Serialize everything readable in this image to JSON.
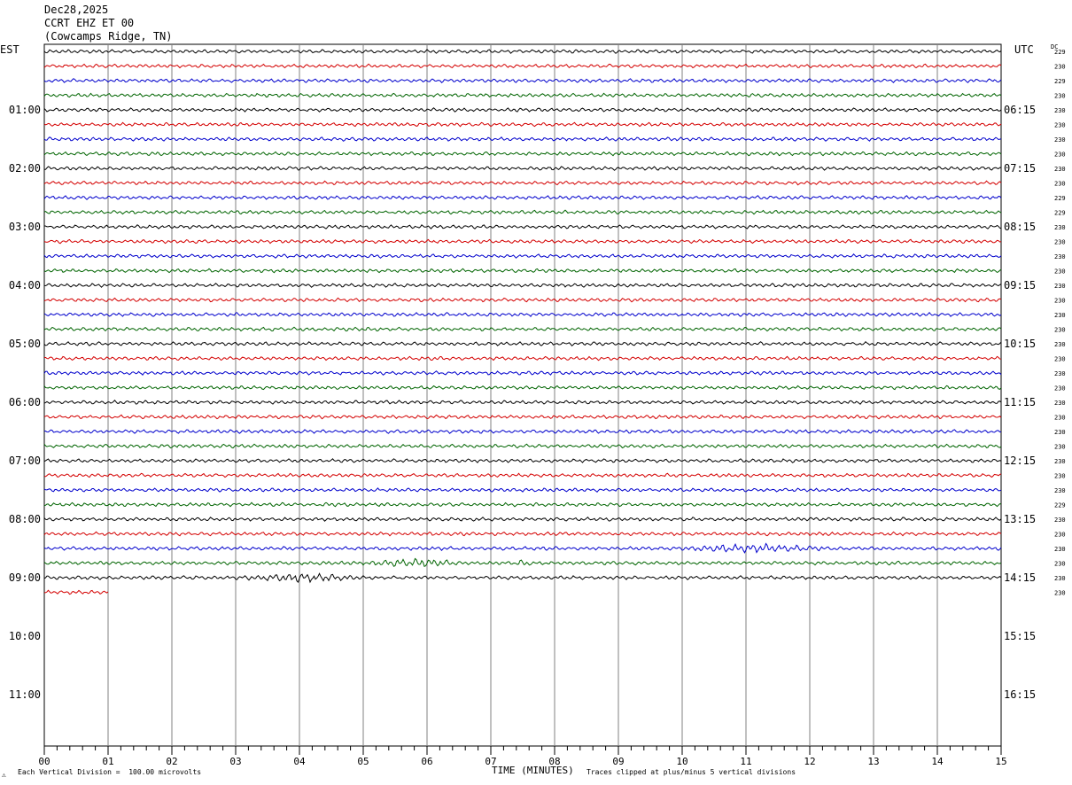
{
  "header": {
    "date": "Dec28,2025",
    "station": "CCRT EHZ ET 00",
    "location": "(Cowcamps Ridge, TN)"
  },
  "left_zone_label": "EST",
  "right_zone_label": "UTC",
  "dc_label": "DC",
  "footer": {
    "scale_note": "Each Vertical Division =  100.00 microvolts",
    "clip_note": "Traces clipped at plus/minus 5 vertical divisions",
    "mark": "⚠"
  },
  "colors": {
    "trace_cycle": [
      "#000000",
      "#d40000",
      "#0000cc",
      "#006400"
    ],
    "grid": "#808080"
  },
  "chart_data": {
    "type": "line",
    "xlabel": "TIME (MINUTES)",
    "x_ticks": [
      "00",
      "01",
      "02",
      "03",
      "04",
      "05",
      "06",
      "07",
      "08",
      "09",
      "10",
      "11",
      "12",
      "13",
      "14",
      "15"
    ],
    "xlim": [
      0,
      15
    ],
    "left_hour_labels": [
      "01:00",
      "02:00",
      "03:00",
      "04:00",
      "05:00",
      "06:00",
      "07:00",
      "08:00",
      "09:00",
      "10:00",
      "11:00"
    ],
    "right_hour_labels": [
      "06:15",
      "07:15",
      "08:15",
      "09:15",
      "10:15",
      "11:15",
      "12:15",
      "13:15",
      "14:15",
      "15:15",
      "16:15"
    ],
    "rows_per_hour": 4,
    "total_row_slots": 48,
    "traces_drawn": 38,
    "last_trace_end_minute": 1,
    "dc_offsets": [
      229,
      230,
      229,
      230,
      230,
      230,
      230,
      230,
      230,
      230,
      229,
      229,
      230,
      230,
      230,
      230,
      230,
      230,
      230,
      230,
      230,
      230,
      230,
      230,
      230,
      230,
      230,
      230,
      230,
      230,
      230,
      229,
      230,
      230,
      230,
      230,
      230,
      230
    ],
    "events": [
      {
        "trace": 34,
        "start_minute": 10.0,
        "end_minute": 12.3,
        "level": "moderate"
      },
      {
        "trace": 35,
        "start_minute": 5.0,
        "end_minute": 6.6,
        "level": "moderate"
      },
      {
        "trace": 35,
        "start_minute": 7.3,
        "end_minute": 7.7,
        "level": "small"
      },
      {
        "trace": 36,
        "start_minute": 3.0,
        "end_minute": 5.0,
        "level": "moderate"
      }
    ]
  }
}
